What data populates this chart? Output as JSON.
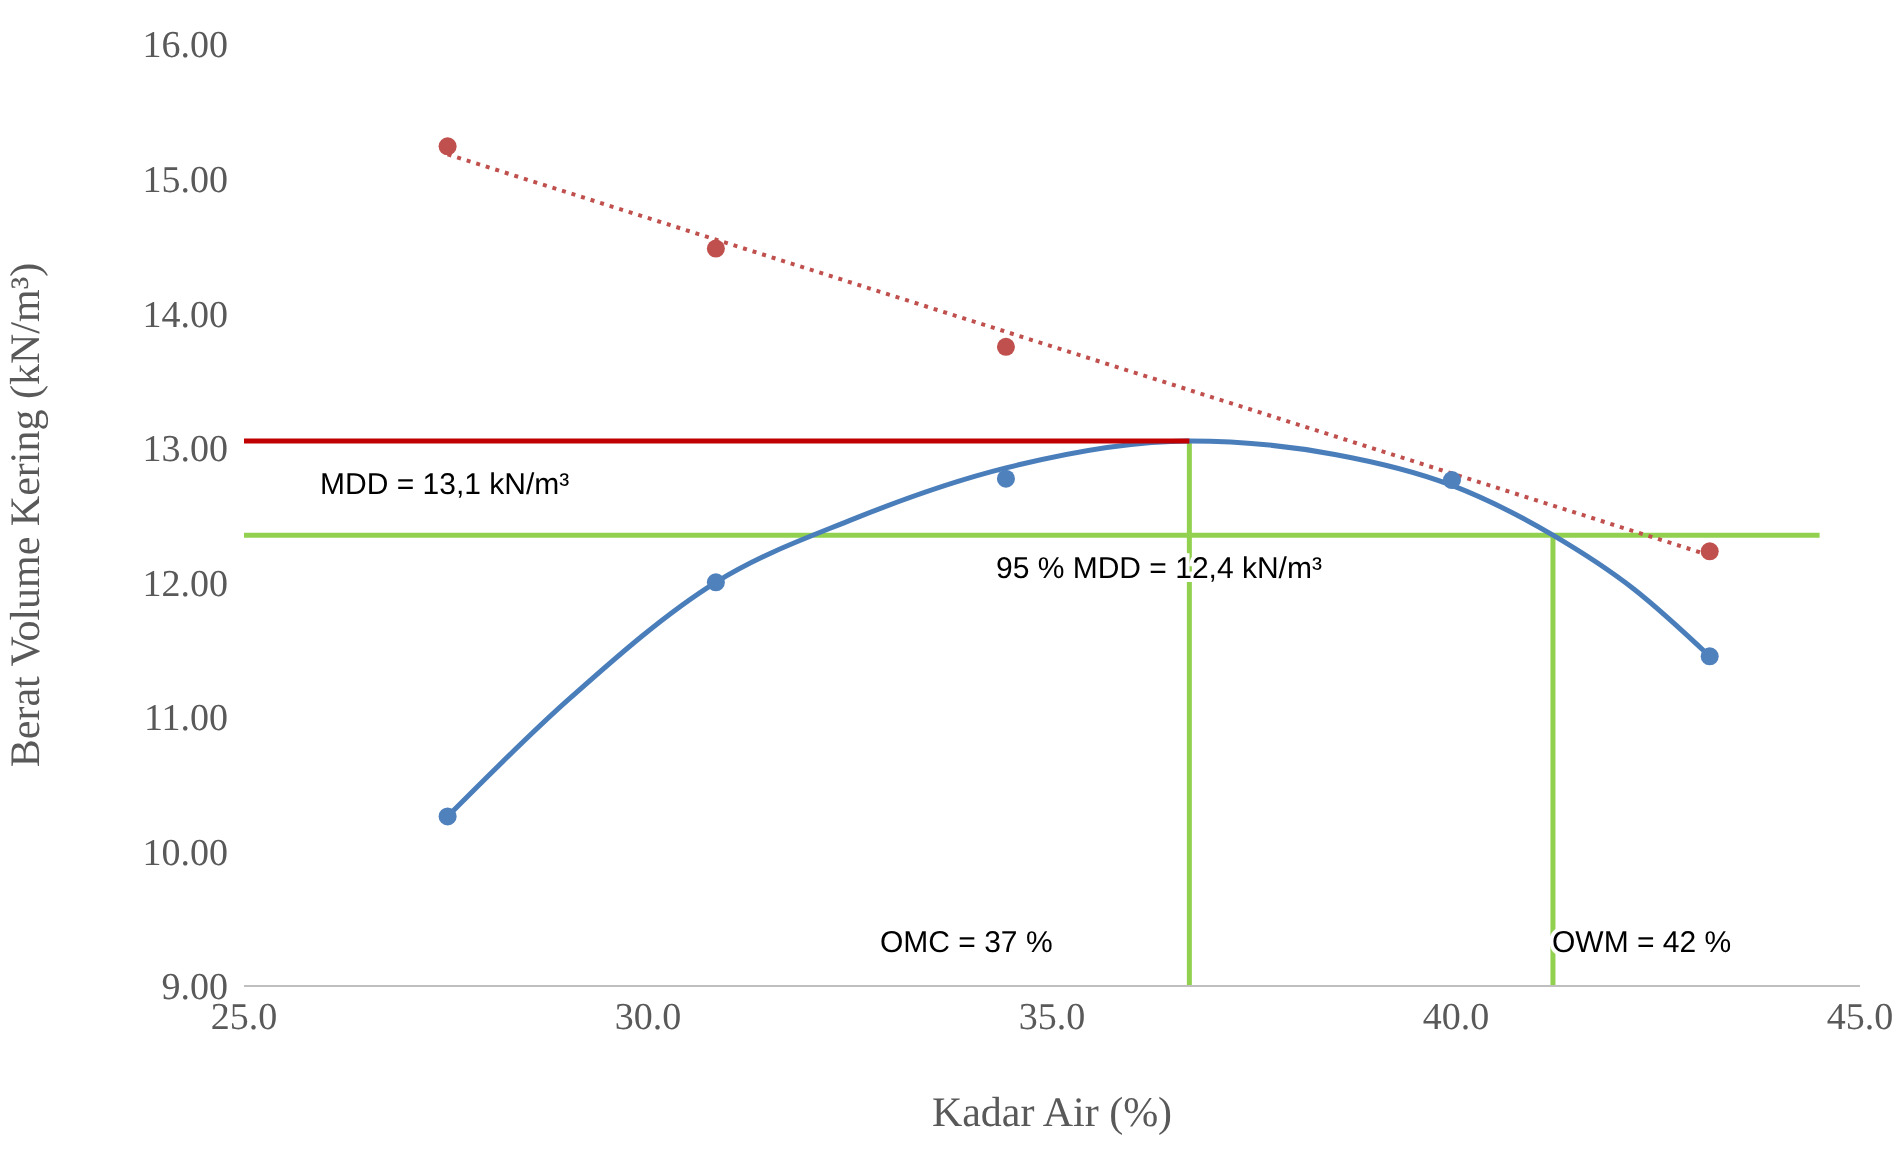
{
  "chart_data": {
    "type": "scatter",
    "xlabel": "Kadar Air (%)",
    "ylabel": "Berat Volume Kering (kN/m³)",
    "xlim": [
      25,
      45
    ],
    "xticks": [
      {
        "value": 25,
        "label": "25.0"
      },
      {
        "value": 30,
        "label": "30.0"
      },
      {
        "value": 35,
        "label": "35.0"
      },
      {
        "value": 40,
        "label": "40.0"
      },
      {
        "value": 45,
        "label": "45.0"
      }
    ],
    "ylim": [
      9,
      16
    ],
    "yticks": [
      {
        "value": 9,
        "label": "9.00"
      },
      {
        "value": 10,
        "label": "10.00"
      },
      {
        "value": 11,
        "label": "11.00"
      },
      {
        "value": 12,
        "label": "12.00"
      },
      {
        "value": 13,
        "label": "13.00"
      },
      {
        "value": 14,
        "label": "14.00"
      },
      {
        "value": 15,
        "label": "15.00"
      },
      {
        "value": 16,
        "label": "16.00"
      }
    ],
    "grid": false,
    "legend": false,
    "series": [
      {
        "type": "line",
        "marker": "none",
        "color": "#92d050",
        "line_style": "solid",
        "x": [
          25,
          44.5
        ],
        "values": [
          12.35,
          12.35
        ]
      },
      {
        "type": "line",
        "marker": "none",
        "color": "#92d050",
        "line_style": "solid",
        "x": [
          36.7,
          36.7
        ],
        "values": [
          9,
          13.05
        ]
      },
      {
        "type": "line",
        "marker": "none",
        "color": "#92d050",
        "line_style": "solid",
        "x": [
          41.2,
          41.2
        ],
        "values": [
          9,
          12.35
        ]
      },
      {
        "type": "line",
        "marker": "none",
        "color": "#c0504d",
        "line_style": "dotted",
        "x": [
          27.52,
          43.14
        ],
        "values": [
          15.18,
          12.2
        ]
      },
      {
        "type": "line",
        "marker": "none",
        "color": "#4a7ebb",
        "line_style": "solid",
        "x": [
          27.52,
          29,
          30.84,
          32.5,
          34.43,
          36.7,
          38.5,
          39.95,
          41.2,
          42.2,
          43.14
        ],
        "values": [
          10.26,
          11.12,
          12.0,
          12.46,
          12.85,
          13.05,
          12.95,
          12.72,
          12.35,
          11.95,
          11.45
        ]
      },
      {
        "type": "line",
        "marker": "none",
        "color": "#c00000",
        "line_style": "solid",
        "x": [
          25,
          36.7
        ],
        "values": [
          13.05,
          13.05
        ]
      },
      {
        "marker": "circle",
        "color": "#4f81bd",
        "x": [
          27.52,
          30.84,
          34.43,
          39.95,
          43.14
        ],
        "values": [
          10.26,
          12.0,
          12.77,
          12.76,
          11.45
        ]
      },
      {
        "marker": "circle",
        "color": "#c0504d",
        "x": [
          27.52,
          30.84,
          34.43,
          43.14
        ],
        "values": [
          15.24,
          14.48,
          13.75,
          12.23
        ]
      }
    ],
    "annotations": [
      "MDD = 13,1 kN/m³",
      "95 % MDD = 12,4 kN/m³",
      "OMC = 37 %",
      "OWM = 42 %"
    ]
  }
}
